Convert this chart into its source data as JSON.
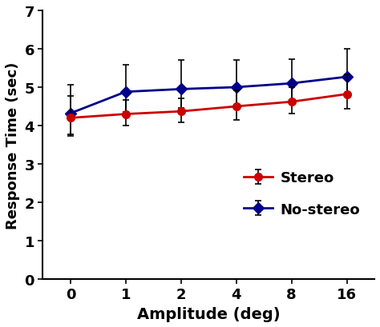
{
  "x_positions": [
    0,
    1,
    2,
    3,
    4,
    5
  ],
  "x_labels": [
    "0",
    "1",
    "2",
    "4",
    "8",
    "16"
  ],
  "stereo_y": [
    4.2,
    4.3,
    4.37,
    4.5,
    4.62,
    4.82
  ],
  "stereo_yerr_low": [
    0.42,
    0.3,
    0.28,
    0.36,
    0.3,
    0.38
  ],
  "stereo_yerr_high": [
    0.58,
    0.36,
    0.33,
    0.42,
    0.38,
    0.52
  ],
  "nostereo_y": [
    4.32,
    4.88,
    4.95,
    5.0,
    5.1,
    5.27
  ],
  "nostereo_yerr_low": [
    0.6,
    0.52,
    0.5,
    0.52,
    0.48,
    0.48
  ],
  "nostereo_yerr_high": [
    0.75,
    0.7,
    0.75,
    0.7,
    0.62,
    0.72
  ],
  "stereo_color": "#cc0000",
  "nostereo_color": "#00008B",
  "ylabel": "Response Time (sec)",
  "xlabel": "Amplitude (deg)",
  "ylim": [
    0,
    7
  ],
  "yticks": [
    0,
    1,
    2,
    3,
    4,
    5,
    6,
    7
  ],
  "marker_size": 7,
  "linewidth": 2.0,
  "legend_stereo": "Stereo",
  "legend_nostereo": "No-stereo",
  "background_color": "#ffffff"
}
